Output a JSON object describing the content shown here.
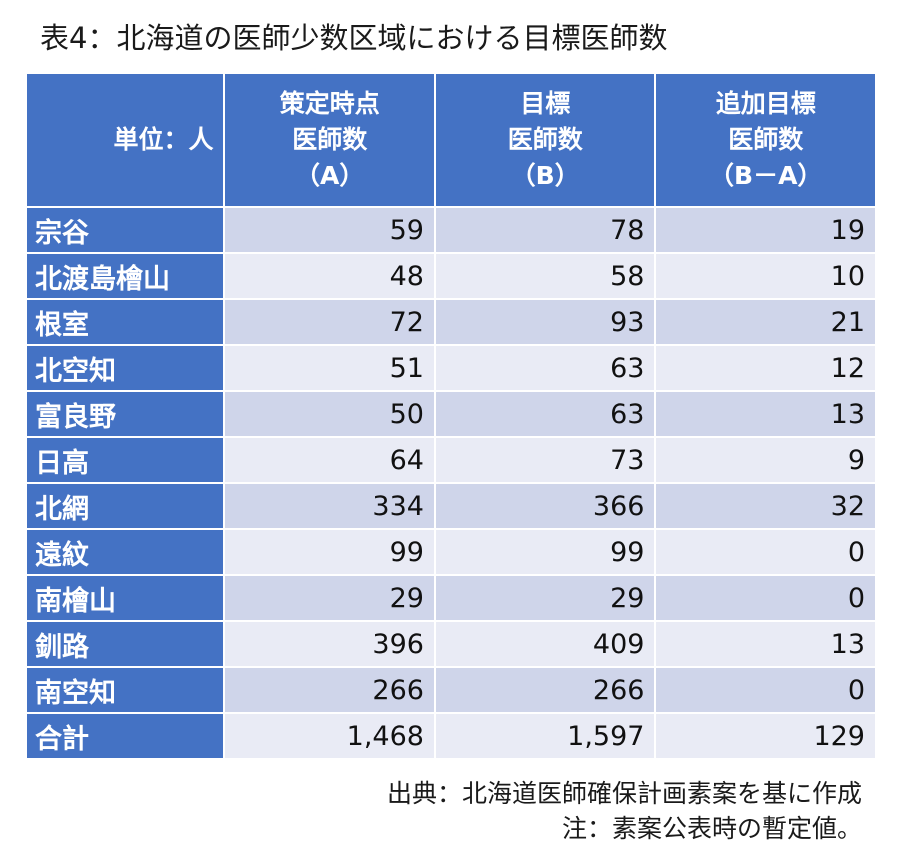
{
  "title": "表4：北海道の医師少数区域における目標医師数",
  "table": {
    "header": {
      "unit": "単位：人",
      "col_a": [
        "策定時点",
        "医師数",
        "（A）"
      ],
      "col_b": [
        "目標",
        "医師数",
        "（B）"
      ],
      "col_c": [
        "追加目標",
        "医師数",
        "（B－A）"
      ]
    },
    "rows": [
      {
        "region": "宗谷",
        "a": "59",
        "b": "78",
        "c": "19"
      },
      {
        "region": "北渡島檜山",
        "a": "48",
        "b": "58",
        "c": "10"
      },
      {
        "region": "根室",
        "a": "72",
        "b": "93",
        "c": "21"
      },
      {
        "region": "北空知",
        "a": "51",
        "b": "63",
        "c": "12"
      },
      {
        "region": "富良野",
        "a": "50",
        "b": "63",
        "c": "13"
      },
      {
        "region": "日高",
        "a": "64",
        "b": "73",
        "c": "9"
      },
      {
        "region": "北網",
        "a": "334",
        "b": "366",
        "c": "32"
      },
      {
        "region": "遠紋",
        "a": "99",
        "b": "99",
        "c": "0"
      },
      {
        "region": "南檜山",
        "a": "29",
        "b": "29",
        "c": "0"
      },
      {
        "region": "釧路",
        "a": "396",
        "b": "409",
        "c": "13"
      },
      {
        "region": "南空知",
        "a": "266",
        "b": "266",
        "c": "0"
      },
      {
        "region": "合計",
        "a": "1,468",
        "b": "1,597",
        "c": "129"
      }
    ]
  },
  "notes": {
    "source": "出典：北海道医師確保計画素案を基に作成",
    "note": "注：素案公表時の暫定値。"
  },
  "colors": {
    "header_bg": "#4472c4",
    "row_odd_bg": "#cfd5ea",
    "row_even_bg": "#e9ebf5"
  }
}
